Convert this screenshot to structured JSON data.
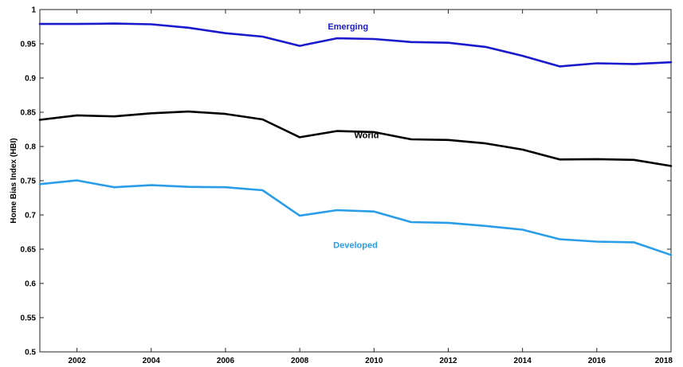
{
  "chart_data": {
    "type": "line",
    "title": "",
    "xlabel": "",
    "ylabel": "Home Bias Index (HBI)",
    "xlim": [
      2001,
      2018
    ],
    "ylim": [
      0.5,
      1
    ],
    "x_ticks": [
      2002,
      2004,
      2006,
      2008,
      2010,
      2012,
      2014,
      2016,
      2018
    ],
    "y_ticks": [
      0.5,
      0.55,
      0.6,
      0.65,
      0.7,
      0.75,
      0.8,
      0.85,
      0.9,
      0.95,
      1
    ],
    "y_tick_labels": [
      "0.5",
      "0.55",
      "0.6",
      "0.65",
      "0.7",
      "0.75",
      "0.8",
      "0.85",
      "0.9",
      "0.95",
      "1"
    ],
    "grid": false,
    "legend": "inline labels",
    "x": [
      2001,
      2002,
      2003,
      2004,
      2005,
      2006,
      2007,
      2008,
      2009,
      2010,
      2011,
      2012,
      2013,
      2014,
      2015,
      2016,
      2017,
      2018
    ],
    "series": [
      {
        "name": "Emerging",
        "color": "#1a1acc",
        "label_at": [
          2009.3,
          0.971
        ],
        "values": [
          0.979,
          0.979,
          0.9795,
          0.9785,
          0.9735,
          0.9655,
          0.9605,
          0.947,
          0.958,
          0.957,
          0.9525,
          0.9515,
          0.9455,
          0.9325,
          0.917,
          0.9215,
          0.9205,
          0.923
        ]
      },
      {
        "name": "World",
        "color": "#000000",
        "label_at": [
          2009.8,
          0.8125
        ],
        "values": [
          0.839,
          0.8455,
          0.844,
          0.8485,
          0.851,
          0.8475,
          0.8395,
          0.8135,
          0.8225,
          0.821,
          0.8105,
          0.8095,
          0.8045,
          0.7955,
          0.781,
          0.7815,
          0.7805,
          0.7715
        ]
      },
      {
        "name": "Developed",
        "color": "#2a9de8",
        "label_at": [
          2009.5,
          0.652
        ],
        "values": [
          0.745,
          0.7505,
          0.7405,
          0.7435,
          0.741,
          0.7405,
          0.736,
          0.699,
          0.707,
          0.705,
          0.6895,
          0.6885,
          0.684,
          0.6785,
          0.6645,
          0.661,
          0.66,
          0.6415
        ]
      }
    ]
  }
}
